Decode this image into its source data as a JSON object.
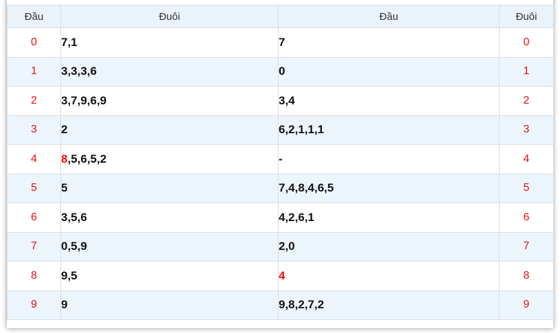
{
  "table": {
    "headers": [
      "Đầu",
      "Đuôi",
      "Đầu",
      "Đuôi"
    ],
    "rows": [
      {
        "left_digit": "0",
        "left_value": [
          {
            "text": "7,1",
            "red": false
          }
        ],
        "right_value": [
          {
            "text": "7",
            "red": false
          }
        ],
        "right_digit": "0"
      },
      {
        "left_digit": "1",
        "left_value": [
          {
            "text": "3,3,3,6",
            "red": false
          }
        ],
        "right_value": [
          {
            "text": "0",
            "red": false
          }
        ],
        "right_digit": "1"
      },
      {
        "left_digit": "2",
        "left_value": [
          {
            "text": "3,7,9,6,9",
            "red": false
          }
        ],
        "right_value": [
          {
            "text": "3,4",
            "red": false
          }
        ],
        "right_digit": "2"
      },
      {
        "left_digit": "3",
        "left_value": [
          {
            "text": "2",
            "red": false
          }
        ],
        "right_value": [
          {
            "text": "6,2,1,1,1",
            "red": false
          }
        ],
        "right_digit": "3"
      },
      {
        "left_digit": "4",
        "left_value": [
          {
            "text": "8",
            "red": true
          },
          {
            "text": ",5,6,5,2",
            "red": false
          }
        ],
        "right_value": [
          {
            "text": "-",
            "red": false
          }
        ],
        "right_digit": "4"
      },
      {
        "left_digit": "5",
        "left_value": [
          {
            "text": "5",
            "red": false
          }
        ],
        "right_value": [
          {
            "text": "7,4,8,4,6,5",
            "red": false
          }
        ],
        "right_digit": "5"
      },
      {
        "left_digit": "6",
        "left_value": [
          {
            "text": "3,5,6",
            "red": false
          }
        ],
        "right_value": [
          {
            "text": "4,2,6,1",
            "red": false
          }
        ],
        "right_digit": "6"
      },
      {
        "left_digit": "7",
        "left_value": [
          {
            "text": "0,5,9",
            "red": false
          }
        ],
        "right_value": [
          {
            "text": "2,0",
            "red": false
          }
        ],
        "right_digit": "7"
      },
      {
        "left_digit": "8",
        "left_value": [
          {
            "text": "9,5",
            "red": false
          }
        ],
        "right_value": [
          {
            "text": "4",
            "red": true
          }
        ],
        "right_digit": "8"
      },
      {
        "left_digit": "9",
        "left_value": [
          {
            "text": "9",
            "red": false
          }
        ],
        "right_value": [
          {
            "text": "9,8,2,7,2",
            "red": false
          }
        ],
        "right_digit": "9"
      }
    ]
  },
  "colors": {
    "accent_red": "#f40b0b",
    "header_bg": "#eaf2fa",
    "row_alt_bg": "#edf5fc",
    "border": "#d9dee3"
  }
}
